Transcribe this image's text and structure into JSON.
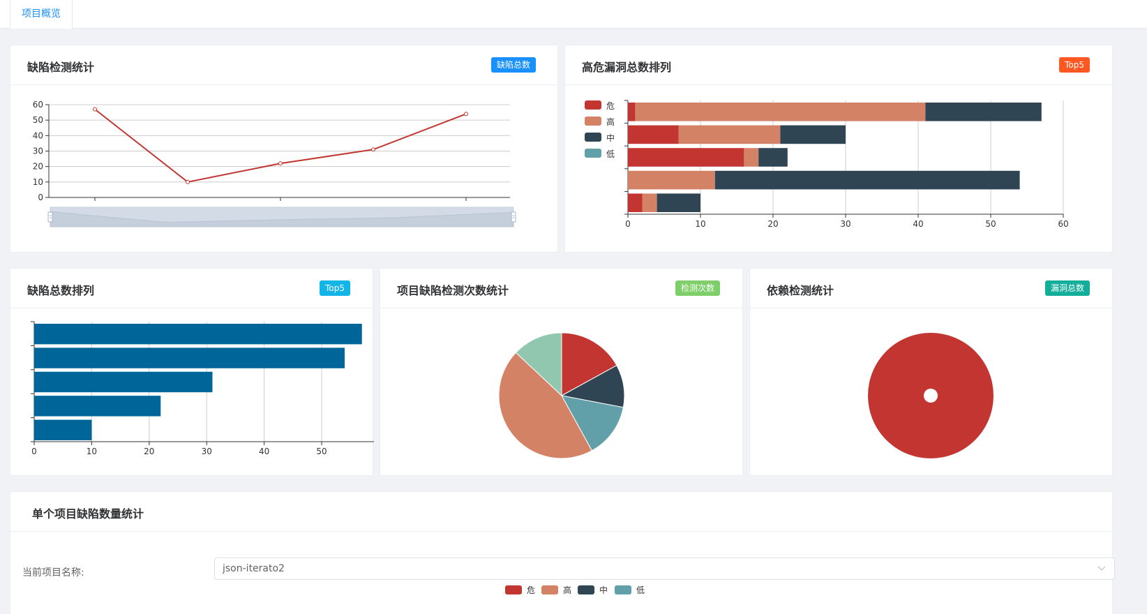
{
  "tabs": [
    {
      "label": "项目概览"
    }
  ],
  "colors": {
    "critical": "#c23531",
    "high": "#d48265",
    "medium": "#2f4554",
    "low": "#61a0a8",
    "mint": "#91c7ae",
    "bar": "#006699"
  },
  "cards": {
    "defect_stats": {
      "title": "缺陷检测统计",
      "badge": "缺陷总数",
      "badge_color": "#1890ff"
    },
    "high_risk_rank": {
      "title": "高危漏洞总数排列",
      "badge": "Top5",
      "badge_color": "#ff5722"
    },
    "defect_total_rank": {
      "title": "缺陷总数排列",
      "badge": "Top5",
      "badge_color": "#13b5e9"
    },
    "project_scan_count": {
      "title": "项目缺陷检测次数统计",
      "badge": "检测次数",
      "badge_color": "#7ecf6a"
    },
    "dependency_stats": {
      "title": "依赖检测统计",
      "badge": "漏洞总数",
      "badge_color": "#13ae9a"
    },
    "single_project": {
      "title": "单个项目缺陷数量统计"
    }
  },
  "form": {
    "project_label": "当前项目名称:",
    "project_value": "json-iterato2"
  },
  "legend": [
    "危",
    "高",
    "中",
    "低"
  ],
  "chart_data": [
    {
      "id": "defect_line",
      "type": "line",
      "title": "",
      "values": [
        57,
        10,
        22,
        31,
        54
      ],
      "ylim": [
        0,
        60
      ],
      "yticks": [
        0,
        10,
        20,
        30,
        40,
        50,
        60
      ],
      "grid": true,
      "data_zoom": true
    },
    {
      "id": "high_risk_stacked",
      "type": "bar",
      "orientation": "horizontal",
      "stacked": true,
      "series": [
        {
          "name": "危",
          "values": [
            1,
            7,
            16,
            0,
            2
          ]
        },
        {
          "name": "高",
          "values": [
            40,
            14,
            2,
            12,
            2
          ]
        },
        {
          "name": "中",
          "values": [
            16,
            9,
            4,
            42,
            6
          ]
        },
        {
          "name": "低",
          "values": [
            0,
            0,
            0,
            0,
            0
          ]
        }
      ],
      "xlim": [
        0,
        60
      ],
      "xticks": [
        0,
        10,
        20,
        30,
        40,
        50,
        60
      ],
      "legend_position": "top-left",
      "grid": true
    },
    {
      "id": "defect_total_bar",
      "type": "bar",
      "orientation": "horizontal",
      "values": [
        57,
        54,
        31,
        22,
        10
      ],
      "xlim": [
        0,
        58
      ],
      "xticks": [
        0,
        10,
        20,
        30,
        40,
        50
      ],
      "grid": true
    },
    {
      "id": "scan_count_pie",
      "type": "pie",
      "values": [
        17,
        11,
        14,
        45,
        13
      ],
      "colors": [
        "#c23531",
        "#2f4554",
        "#61a0a8",
        "#d48265",
        "#91c7ae"
      ]
    },
    {
      "id": "dependency_pie",
      "type": "pie",
      "values": [
        100
      ],
      "colors": [
        "#c23531"
      ]
    }
  ]
}
